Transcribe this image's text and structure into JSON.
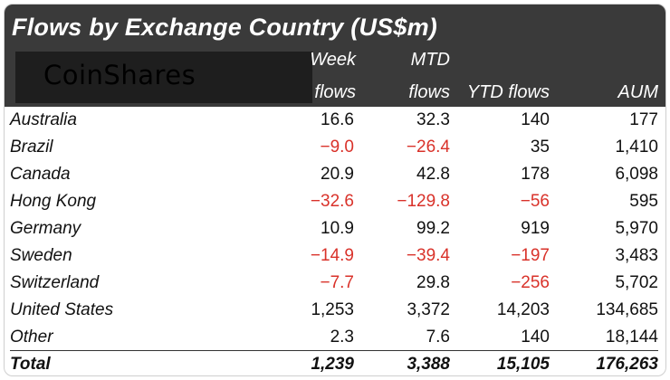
{
  "title": "Flows by Exchange Country (US$m)",
  "logo": {
    "text": "CoinShares"
  },
  "columns": {
    "week_line1": "Week",
    "week_line2": "flows",
    "mtd_line1": "MTD",
    "mtd_line2": "flows",
    "ytd": "YTD flows",
    "aum": "AUM"
  },
  "colors": {
    "header_background": "#3a3a3a",
    "negative": "#d9322a",
    "text": "#111111"
  },
  "chart_data": {
    "type": "table",
    "title": "Flows by Exchange Country (US$m)",
    "headers": [
      "",
      "Week flows",
      "MTD flows",
      "YTD flows",
      "AUM"
    ],
    "rows": [
      {
        "label": "Australia",
        "week": "16.6",
        "mtd": "32.3",
        "ytd": "140",
        "aum": "177"
      },
      {
        "label": "Brazil",
        "week": "-9.0",
        "mtd": "-26.4",
        "ytd": "35",
        "aum": "1,410"
      },
      {
        "label": "Canada",
        "week": "20.9",
        "mtd": "42.8",
        "ytd": "178",
        "aum": "6,098"
      },
      {
        "label": "Hong Kong",
        "week": "-32.6",
        "mtd": "-129.8",
        "ytd": "-56",
        "aum": "595"
      },
      {
        "label": "Germany",
        "week": "10.9",
        "mtd": "99.2",
        "ytd": "919",
        "aum": "5,970"
      },
      {
        "label": "Sweden",
        "week": "-14.9",
        "mtd": "-39.4",
        "ytd": "-197",
        "aum": "3,483"
      },
      {
        "label": "Switzerland",
        "week": "-7.7",
        "mtd": "29.8",
        "ytd": "-256",
        "aum": "5,702"
      },
      {
        "label": "United States",
        "week": "1,253",
        "mtd": "3,372",
        "ytd": "14,203",
        "aum": "134,685"
      },
      {
        "label": "Other",
        "week": "2.3",
        "mtd": "7.6",
        "ytd": "140",
        "aum": "18,144"
      }
    ],
    "total": {
      "label": "Total",
      "week": "1,239",
      "mtd": "3,388",
      "ytd": "15,105",
      "aum": "176,263"
    }
  }
}
